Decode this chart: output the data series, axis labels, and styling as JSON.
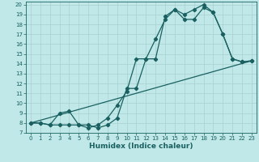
{
  "title": "",
  "xlabel": "Humidex (Indice chaleur)",
  "bg_color": "#c0e8e8",
  "line_color": "#1a6060",
  "grid_color": "#a8d0d0",
  "xlim": [
    -0.5,
    23.5
  ],
  "ylim": [
    7,
    20.3
  ],
  "yticks": [
    7,
    8,
    9,
    10,
    11,
    12,
    13,
    14,
    15,
    16,
    17,
    18,
    19,
    20
  ],
  "xticks": [
    0,
    1,
    2,
    3,
    4,
    5,
    6,
    7,
    8,
    9,
    10,
    11,
    12,
    13,
    14,
    15,
    16,
    17,
    18,
    19,
    20,
    21,
    22,
    23
  ],
  "line1_x": [
    0,
    1,
    2,
    3,
    4,
    5,
    6,
    7,
    8,
    9,
    10,
    11,
    12,
    13,
    14,
    15,
    16,
    17,
    18,
    19,
    20,
    21,
    22,
    23
  ],
  "line1_y": [
    8.0,
    8.0,
    7.8,
    7.8,
    7.8,
    7.8,
    7.5,
    7.8,
    8.5,
    9.8,
    11.2,
    14.5,
    14.5,
    16.5,
    18.5,
    19.5,
    19.0,
    19.5,
    20.0,
    19.2,
    17.0,
    14.5,
    14.2,
    14.3
  ],
  "line2_x": [
    0,
    1,
    2,
    3,
    4,
    5,
    6,
    7,
    8,
    9,
    10,
    11,
    12,
    13,
    14,
    15,
    16,
    17,
    18,
    19,
    20,
    21,
    22,
    23
  ],
  "line2_y": [
    8.0,
    8.0,
    7.8,
    9.0,
    9.2,
    7.8,
    7.8,
    7.5,
    7.8,
    8.5,
    11.5,
    11.5,
    14.5,
    14.5,
    18.8,
    19.5,
    18.5,
    18.5,
    19.7,
    19.2,
    17.0,
    14.5,
    14.2,
    14.3
  ],
  "line3_x": [
    0,
    23
  ],
  "line3_y": [
    8.0,
    14.3
  ],
  "marker": "D",
  "marker_size": 2.2,
  "linewidth": 0.9,
  "font_size_ticks": 5,
  "font_size_label": 6.5
}
